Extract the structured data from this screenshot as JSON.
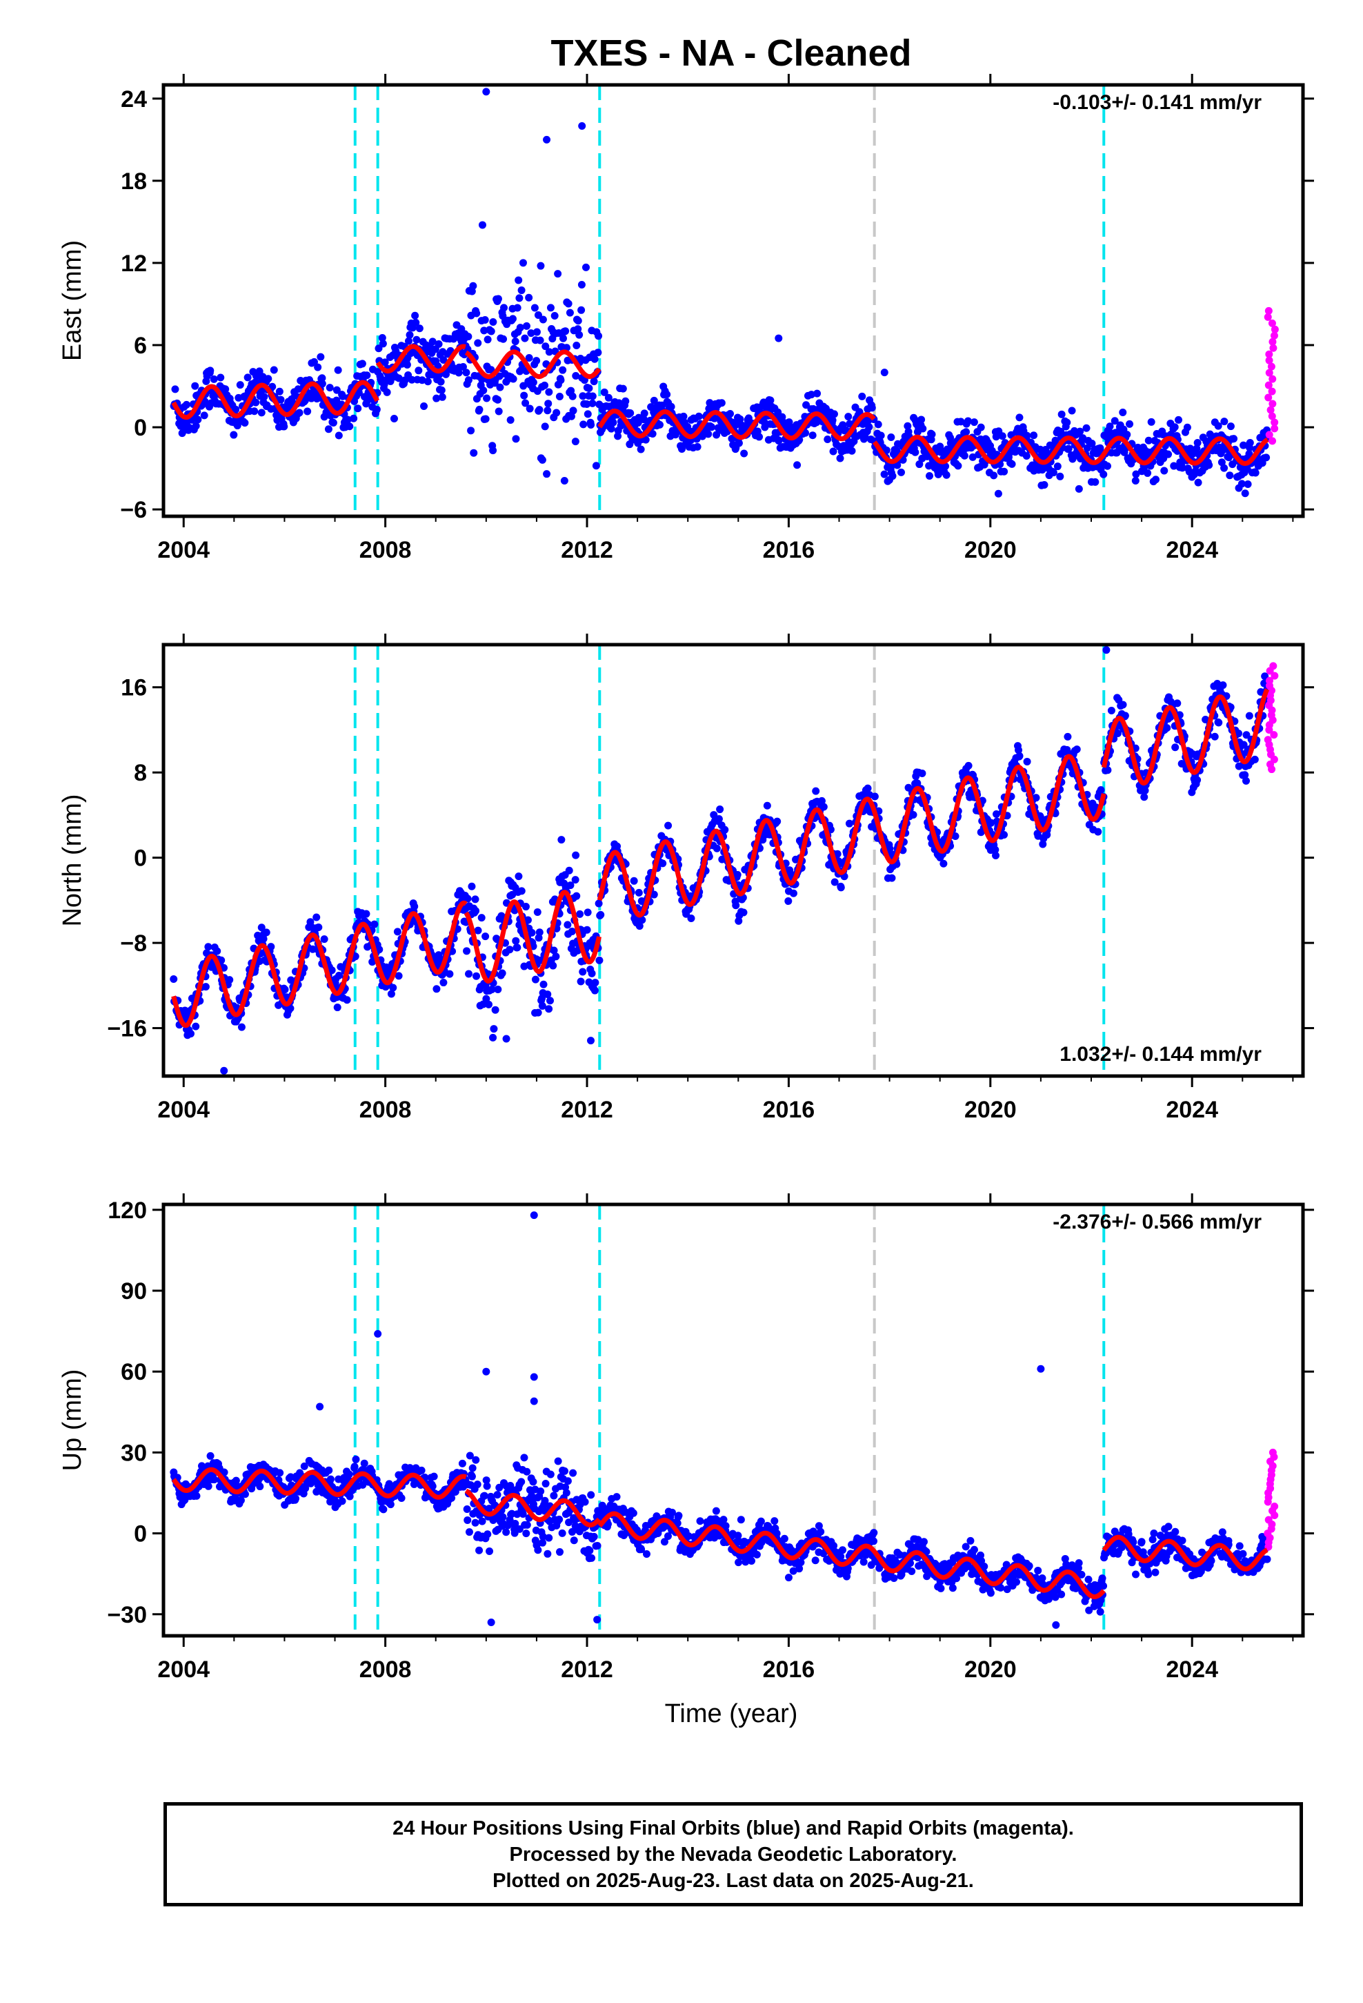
{
  "title": "TXES  - NA - Cleaned",
  "x_axis_label": "Time (year)",
  "footer": {
    "line1": "24 Hour Positions Using Final Orbits (blue) and Rapid Orbits (magenta).",
    "line2": "Processed by the Nevada Geodetic Laboratory.",
    "line3": "Plotted on 2025-Aug-23. Last data on 2025-Aug-21."
  },
  "colors": {
    "final_orbit_points": "#0000ff",
    "rapid_orbit_points": "#ff00ff",
    "model_fit": "#ff0000",
    "equipment_change_lines": "#00e5ee",
    "other_event_line": "#c8c8c8"
  },
  "chart_data": [
    {
      "type": "scatter",
      "component": "east",
      "ylabel": "East (mm)",
      "rate_annotation": "-0.103+/- 0.141 mm/yr",
      "rate_position": "top-right",
      "xlim": [
        2003.6,
        2026.2
      ],
      "ylim": [
        -6.5,
        25
      ],
      "x_ticks": [
        "2004",
        "2008",
        "2012",
        "2016",
        "2020",
        "2024"
      ],
      "y_ticks": [
        "-6",
        "0",
        "6",
        "12",
        "18",
        "24"
      ],
      "event_lines": [
        {
          "year": 2007.4,
          "kind": "equipment"
        },
        {
          "year": 2007.85,
          "kind": "equipment"
        },
        {
          "year": 2012.25,
          "kind": "equipment"
        },
        {
          "year": 2017.7,
          "kind": "other"
        },
        {
          "year": 2022.25,
          "kind": "equipment"
        }
      ],
      "segments": [
        {
          "start": 2003.8,
          "end": 2007.85,
          "offset": 1.8,
          "trend": 0.1,
          "amp": 1.1,
          "noise": 1.5
        },
        {
          "start": 2007.85,
          "end": 2009.6,
          "offset": 5.0,
          "trend": 0.0,
          "amp": 0.9,
          "noise": 2.0
        },
        {
          "start": 2009.6,
          "end": 2012.25,
          "offset": 4.6,
          "trend": 0.0,
          "amp": 0.9,
          "noise": 6.0
        },
        {
          "start": 2012.25,
          "end": 2017.7,
          "offset": 0.3,
          "trend": -0.05,
          "amp": 0.9,
          "noise": 1.4
        },
        {
          "start": 2017.7,
          "end": 2025.5,
          "offset": -1.6,
          "trend": -0.02,
          "amp": 0.9,
          "noise": 1.5
        }
      ],
      "rapid": {
        "start": 2025.5,
        "end": 2025.65,
        "min": -1.0,
        "max": 8.5
      },
      "outliers": [
        [
          2010.0,
          24.5
        ],
        [
          2011.2,
          21.0
        ],
        [
          2011.9,
          22.0
        ],
        [
          2015.8,
          6.5
        ],
        [
          2017.9,
          4.0
        ]
      ]
    },
    {
      "type": "scatter",
      "component": "north",
      "ylabel": "North (mm)",
      "rate_annotation": "1.032+/- 0.144 mm/yr",
      "rate_position": "bottom-right",
      "xlim": [
        2003.6,
        2026.2
      ],
      "ylim": [
        -20.5,
        20
      ],
      "x_ticks": [
        "2004",
        "2008",
        "2012",
        "2016",
        "2020",
        "2024"
      ],
      "y_ticks": [
        "-16",
        "-8",
        "0",
        "8",
        "16"
      ],
      "event_lines": [
        {
          "year": 2007.4,
          "kind": "equipment"
        },
        {
          "year": 2007.85,
          "kind": "equipment"
        },
        {
          "year": 2012.25,
          "kind": "equipment"
        },
        {
          "year": 2017.7,
          "kind": "other"
        },
        {
          "year": 2022.25,
          "kind": "equipment"
        }
      ],
      "segments": [
        {
          "start": 2003.8,
          "end": 2009.6,
          "offset": -13.0,
          "trend": 1.0,
          "amp": 3.0,
          "noise": 1.6
        },
        {
          "start": 2009.6,
          "end": 2012.25,
          "offset": -8.5,
          "trend": 0.9,
          "amp": 3.5,
          "noise": 4.0
        },
        {
          "start": 2012.25,
          "end": 2022.25,
          "offset": -3.0,
          "trend": 1.0,
          "amp": 3.2,
          "noise": 1.6
        },
        {
          "start": 2022.25,
          "end": 2025.5,
          "offset": 9.5,
          "trend": 1.0,
          "amp": 3.3,
          "noise": 1.8
        }
      ],
      "rapid": {
        "start": 2025.5,
        "end": 2025.65,
        "min": 8.3,
        "max": 18.0
      },
      "outliers": [
        [
          2004.8,
          -20.0
        ],
        [
          2010.4,
          -17.0
        ],
        [
          2022.3,
          19.5
        ]
      ]
    },
    {
      "type": "scatter",
      "component": "up",
      "ylabel": "Up (mm)",
      "rate_annotation": "-2.376+/- 0.566 mm/yr",
      "rate_position": "top-right",
      "xlim": [
        2003.6,
        2026.2
      ],
      "ylim": [
        -38,
        122
      ],
      "x_ticks": [
        "2004",
        "2008",
        "2012",
        "2016",
        "2020",
        "2024"
      ],
      "y_ticks": [
        "-30",
        "0",
        "30",
        "60",
        "90",
        "120"
      ],
      "event_lines": [
        {
          "year": 2007.4,
          "kind": "equipment"
        },
        {
          "year": 2007.85,
          "kind": "equipment"
        },
        {
          "year": 2012.25,
          "kind": "equipment"
        },
        {
          "year": 2017.7,
          "kind": "other"
        },
        {
          "year": 2022.25,
          "kind": "equipment"
        }
      ],
      "segments": [
        {
          "start": 2003.8,
          "end": 2009.6,
          "offset": 20.0,
          "trend": -0.5,
          "amp": 4.0,
          "noise": 4.5
        },
        {
          "start": 2009.6,
          "end": 2012.25,
          "offset": 12.0,
          "trend": -2.0,
          "amp": 4.0,
          "noise": 12.0
        },
        {
          "start": 2012.25,
          "end": 2022.25,
          "offset": 4.0,
          "trend": -2.4,
          "amp": 4.0,
          "noise": 5.0
        },
        {
          "start": 2022.25,
          "end": 2025.5,
          "offset": -5.0,
          "trend": -1.5,
          "amp": 4.0,
          "noise": 5.0
        }
      ],
      "rapid": {
        "start": 2025.5,
        "end": 2025.65,
        "min": -5.0,
        "max": 30.0
      },
      "outliers": [
        [
          2007.85,
          74.0
        ],
        [
          2010.0,
          60.0
        ],
        [
          2010.95,
          118.0
        ],
        [
          2010.95,
          58.0
        ],
        [
          2010.95,
          49.0
        ],
        [
          2021.0,
          61.0
        ],
        [
          2006.7,
          47.0
        ],
        [
          2010.1,
          -33.0
        ],
        [
          2012.2,
          -32.0
        ],
        [
          2021.3,
          -34.0
        ]
      ]
    }
  ]
}
